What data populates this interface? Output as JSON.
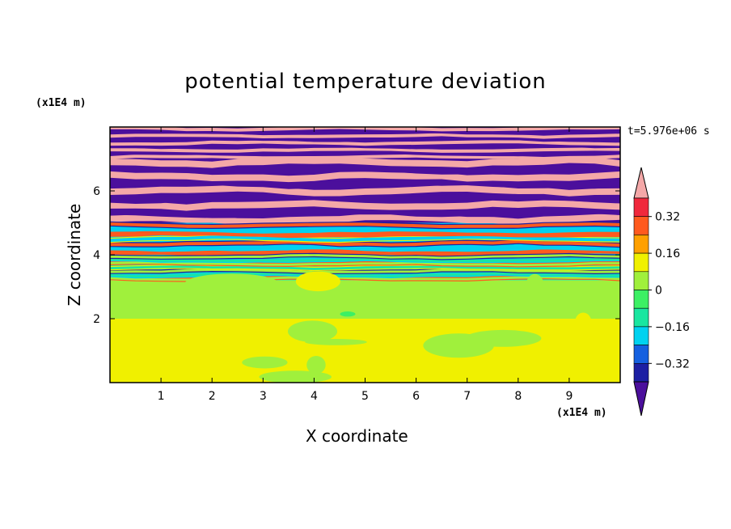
{
  "chart_data": {
    "type": "heatmap",
    "title": "potential temperature deviation",
    "xlabel": "X coordinate",
    "ylabel": "Z coordinate",
    "x_unit": "(x1E4 m)",
    "y_unit": "(x1E4 m)",
    "time_label": "t=5.976e+06 s",
    "xlim": [
      0,
      10
    ],
    "ylim": [
      0,
      8
    ],
    "x_ticks": [
      "1",
      "2",
      "3",
      "4",
      "5",
      "6",
      "7",
      "8",
      "9"
    ],
    "y_ticks": [
      "2",
      "4",
      "6"
    ],
    "colorbar": {
      "tick_labels": [
        "0.32",
        "0.16",
        "0",
        "−0.16",
        "−0.32"
      ],
      "levels": [
        -0.4,
        -0.32,
        -0.24,
        -0.16,
        -0.08,
        0,
        0.08,
        0.16,
        0.24,
        0.32,
        0.4
      ],
      "colors": [
        "#4b0f9c",
        "#1c1fa3",
        "#1460e0",
        "#00d2f0",
        "#19e6a0",
        "#3cf064",
        "#a0f03c",
        "#f0f000",
        "#ffa000",
        "#ff5a1e",
        "#f0283c",
        "#f4a8a8"
      ]
    },
    "layers": [
      {
        "z": [
          7.0,
          8.0
        ],
        "pattern": "alternating",
        "value_high": 0.45,
        "value_low": -0.45
      },
      {
        "z": [
          5.0,
          7.0
        ],
        "pattern": "alternating",
        "value_high": 0.45,
        "value_low": -0.45
      },
      {
        "z": [
          4.0,
          5.0
        ],
        "pattern": "mixed",
        "value_high": 0.3,
        "value_low": -0.2
      },
      {
        "z": [
          3.2,
          4.0
        ],
        "pattern": "banded",
        "value_high": 0.05,
        "value_low": -0.15
      },
      {
        "z": [
          2.0,
          3.2
        ],
        "pattern": "uniform",
        "value": 0.04
      },
      {
        "z": [
          0.0,
          2.0
        ],
        "pattern": "uniform",
        "value": 0.1
      }
    ]
  }
}
